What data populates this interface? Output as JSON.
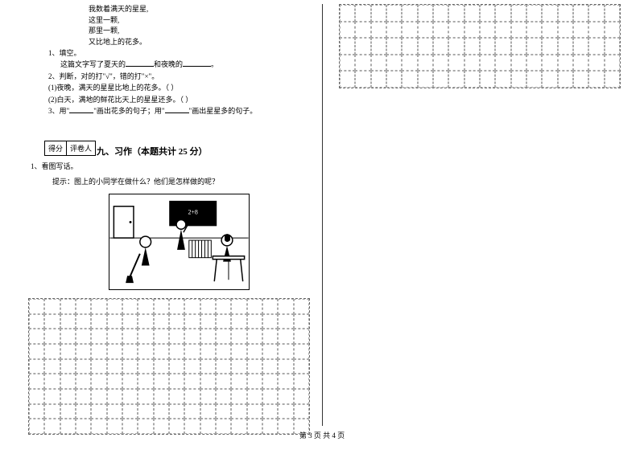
{
  "poem": {
    "line1": "我数着满天的星星,",
    "line2": "这里一颗,",
    "line3": "那里一颗,",
    "line4": "又比地上的花多。"
  },
  "questions": {
    "q1_num": "1、填空。",
    "q1_text_a": "这篇文字写了夏天的",
    "q1_text_b": "和夜晚的",
    "q1_text_c": "。",
    "q2_num": "2、判断，对的打\"√\"，错的打\"×\"。",
    "q2_sub1": "(1)夜晚，满天的星星比地上的花多。（    ）",
    "q2_sub2": "(2)白天，满地的鲜花比天上的星星还多。（    ）",
    "q3_a": "3、用\"",
    "q3_b": "\"画出花多的句子；用\"",
    "q3_c": "\"画出星星多的句子。"
  },
  "scoreBox": {
    "score": "得分",
    "grader": "评卷人"
  },
  "section9": {
    "title": "九、习作（本题共计 25 分）",
    "q1": "1、看图写话。",
    "hint": "提示：图上的小同学在做什么？他们是怎样做的呢？"
  },
  "footer": "第 3 页 共 4 页",
  "grid": {
    "left_cols": 18,
    "left_rows": 9,
    "right_cols": 18,
    "right_rows": 5,
    "border_color": "#aaaaaa"
  }
}
